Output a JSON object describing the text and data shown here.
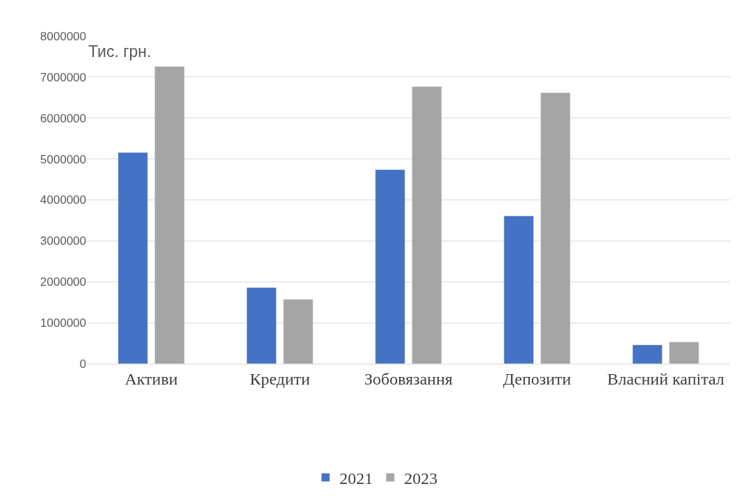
{
  "chart_data": {
    "type": "bar",
    "categories": [
      "Активи",
      "Кредити",
      "Зобовязання",
      "Депозити",
      "Власний капітал"
    ],
    "series": [
      {
        "name": "2021",
        "color": "#4472c4",
        "values": [
          5160000,
          1860000,
          4740000,
          3610000,
          460000
        ]
      },
      {
        "name": "2023",
        "color": "#a5a5a5",
        "values": [
          7260000,
          1570000,
          6770000,
          6620000,
          530000
        ]
      }
    ],
    "ylim": [
      0,
      8000000
    ],
    "yticks": [
      0,
      1000000,
      2000000,
      3000000,
      4000000,
      5000000,
      6000000,
      7000000,
      8000000
    ],
    "annotations": [
      "Тис. грн."
    ],
    "grid": "y",
    "legend": "bottom"
  }
}
